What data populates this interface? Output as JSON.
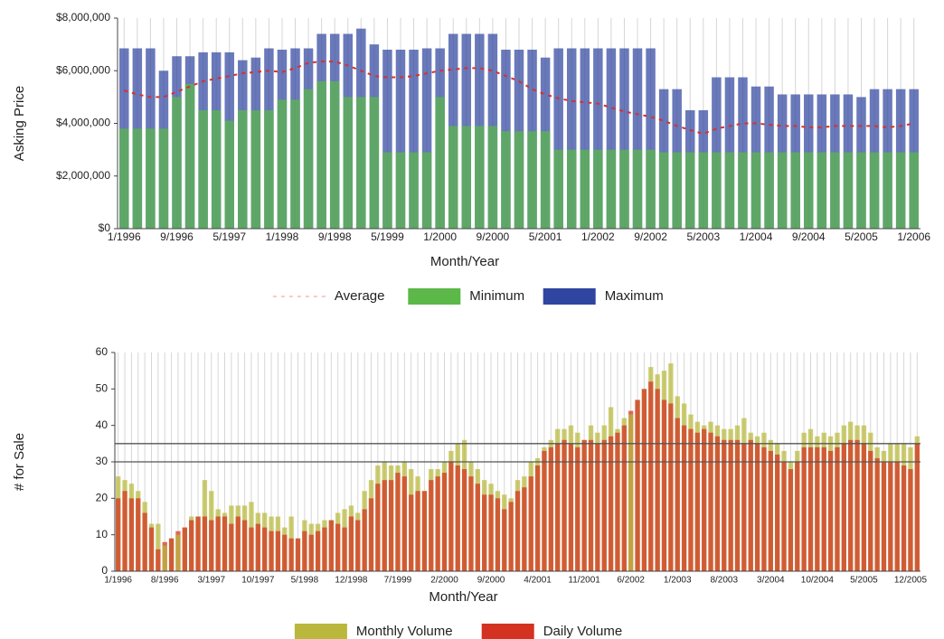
{
  "chart_data": [
    {
      "type": "bar",
      "y_label": "Asking Price",
      "x_label": "Month/Year",
      "categories": [
        "1/1996",
        null,
        null,
        null,
        "9/1996",
        null,
        null,
        null,
        "5/1997",
        null,
        null,
        null,
        "1/1998",
        null,
        null,
        null,
        "9/1998",
        null,
        null,
        null,
        "5/1999",
        null,
        null,
        null,
        "1/2000",
        null,
        null,
        null,
        "9/2000",
        null,
        null,
        null,
        "5/2001",
        null,
        null,
        null,
        "1/2002",
        null,
        null,
        null,
        "9/2002",
        null,
        null,
        null,
        "5/2003",
        null,
        null,
        null,
        "1/2004",
        null,
        null,
        null,
        "9/2004",
        null,
        null,
        null,
        "5/2005",
        null,
        null,
        null,
        "1/2006"
      ],
      "series": [
        {
          "name": "Average",
          "kind": "line",
          "color": "#d9302a",
          "values": [
            5250000,
            5100000,
            5000000,
            5000000,
            5200000,
            5400000,
            5600000,
            5700000,
            5800000,
            5900000,
            5950000,
            6000000,
            5950000,
            6100000,
            6300000,
            6350000,
            6350000,
            6200000,
            6000000,
            5800000,
            5750000,
            5750000,
            5800000,
            5900000,
            6000000,
            6050000,
            6100000,
            6100000,
            6000000,
            5800000,
            5600000,
            5300000,
            5100000,
            4950000,
            4850000,
            4800000,
            4750000,
            4600000,
            4450000,
            4350000,
            4250000,
            4100000,
            3900000,
            3750000,
            3600000,
            3800000,
            3900000,
            4000000,
            4000000,
            3950000,
            3900000,
            3900000,
            3850000,
            3850000,
            3900000,
            3900000,
            3900000,
            3900000,
            3850000,
            3900000,
            4000000
          ]
        },
        {
          "name": "Minimum",
          "kind": "bar",
          "color": "#5cb848",
          "values": [
            3800000,
            3800000,
            3800000,
            3800000,
            5000000,
            5500000,
            4500000,
            4500000,
            4100000,
            4500000,
            4500000,
            4500000,
            4900000,
            4900000,
            5300000,
            5600000,
            5600000,
            5000000,
            5000000,
            5000000,
            2900000,
            2900000,
            2900000,
            2900000,
            5000000,
            3900000,
            3900000,
            3900000,
            3900000,
            3700000,
            3700000,
            3700000,
            3700000,
            3000000,
            3000000,
            3000000,
            3000000,
            3000000,
            3000000,
            3000000,
            3000000,
            2900000,
            2900000,
            2900000,
            2900000,
            2900000,
            2900000,
            2900000,
            2900000,
            2900000,
            2900000,
            2900000,
            2900000,
            2900000,
            2900000,
            2900000,
            2900000,
            2900000,
            2900000,
            2900000,
            2900000
          ]
        },
        {
          "name": "Maximum",
          "kind": "bar",
          "color": "#2f45a0",
          "values": [
            6850000,
            6850000,
            6850000,
            6000000,
            6550000,
            6550000,
            6700000,
            6700000,
            6700000,
            6400000,
            6500000,
            6850000,
            6800000,
            6850000,
            6850000,
            7400000,
            7400000,
            7400000,
            7600000,
            7000000,
            6800000,
            6800000,
            6800000,
            6850000,
            6850000,
            7400000,
            7400000,
            7400000,
            7400000,
            6800000,
            6800000,
            6800000,
            6500000,
            6850000,
            6850000,
            6850000,
            6850000,
            6850000,
            6850000,
            6850000,
            6850000,
            5300000,
            5300000,
            4500000,
            4500000,
            5750000,
            5750000,
            5750000,
            5400000,
            5400000,
            5100000,
            5100000,
            5100000,
            5100000,
            5100000,
            5100000,
            5000000,
            5300000,
            5300000,
            5300000,
            5300000
          ]
        }
      ],
      "ylim": [
        0,
        8000000
      ],
      "yticks": [
        {
          "value": 0,
          "label": "$0"
        },
        {
          "value": 2000000,
          "label": "$2,000,000"
        },
        {
          "value": 4000000,
          "label": "$4,000,000"
        },
        {
          "value": 6000000,
          "label": "$6,000,000"
        },
        {
          "value": 8000000,
          "label": "$8,000,000"
        }
      ],
      "vertical_grid": true
    },
    {
      "type": "bar",
      "y_label": "# for Sale",
      "x_label": "Month/Year",
      "categories": [
        "1/1996",
        null,
        null,
        null,
        null,
        null,
        null,
        "8/1996",
        null,
        null,
        null,
        null,
        null,
        null,
        "3/1997",
        null,
        null,
        null,
        null,
        null,
        null,
        "10/1997",
        null,
        null,
        null,
        null,
        null,
        null,
        "5/1998",
        null,
        null,
        null,
        null,
        null,
        null,
        "12/1998",
        null,
        null,
        null,
        null,
        null,
        null,
        "7/1999",
        null,
        null,
        null,
        null,
        null,
        null,
        "2/2000",
        null,
        null,
        null,
        null,
        null,
        null,
        "9/2000",
        null,
        null,
        null,
        null,
        null,
        null,
        "4/2001",
        null,
        null,
        null,
        null,
        null,
        null,
        "11/2001",
        null,
        null,
        null,
        null,
        null,
        null,
        "6/2002",
        null,
        null,
        null,
        null,
        null,
        null,
        "1/2003",
        null,
        null,
        null,
        null,
        null,
        null,
        "8/2003",
        null,
        null,
        null,
        null,
        null,
        null,
        "3/2004",
        null,
        null,
        null,
        null,
        null,
        null,
        "10/2004",
        null,
        null,
        null,
        null,
        null,
        null,
        "5/2005",
        null,
        null,
        null,
        null,
        null,
        null,
        "12/2005",
        null
      ],
      "series": [
        {
          "name": "Monthly Volume",
          "kind": "bar",
          "color": "#b9b83c",
          "values": [
            26,
            25,
            24,
            22,
            19,
            13,
            13,
            7,
            9,
            10,
            12,
            15,
            15,
            25,
            22,
            17,
            16,
            18,
            18,
            18,
            19,
            16,
            16,
            15,
            15,
            12,
            15,
            9,
            14,
            13,
            13,
            14,
            14,
            16,
            17,
            18,
            16,
            22,
            25,
            29,
            30,
            29,
            29,
            30,
            28,
            26,
            22,
            28,
            28,
            30,
            33,
            35,
            36,
            30,
            28,
            25,
            24,
            22,
            21,
            20,
            25,
            26,
            30,
            31,
            34,
            36,
            39,
            39,
            40,
            38,
            36,
            40,
            38,
            40,
            45,
            39,
            42,
            43,
            47,
            50,
            56,
            54,
            55,
            57,
            48,
            46,
            43,
            41,
            40,
            41,
            40,
            39,
            39,
            40,
            42,
            38,
            37,
            38,
            36,
            35,
            33,
            30,
            33,
            38,
            39,
            37,
            38,
            37,
            38,
            40,
            41,
            40,
            40,
            38,
            34,
            33,
            35,
            35,
            35,
            34,
            37
          ]
        },
        {
          "name": "Daily Volume",
          "kind": "bar",
          "color": "#d2321f",
          "values": [
            20,
            22,
            20,
            20,
            16,
            12,
            6,
            8,
            9,
            11,
            12,
            14,
            15,
            15,
            14,
            15,
            15,
            13,
            15,
            14,
            12,
            13,
            12,
            11,
            11,
            10,
            9,
            9,
            11,
            10,
            11,
            12,
            14,
            13,
            12,
            15,
            14,
            17,
            20,
            24,
            25,
            25,
            27,
            26,
            21,
            22,
            22,
            25,
            26,
            27,
            30,
            29,
            28,
            26,
            24,
            21,
            21,
            20,
            17,
            19,
            22,
            23,
            26,
            29,
            33,
            34,
            35,
            36,
            35,
            34,
            36,
            36,
            35,
            36,
            37,
            38,
            40,
            44,
            47,
            50,
            52,
            50,
            47,
            46,
            42,
            40,
            39,
            38,
            39,
            38,
            37,
            36,
            36,
            36,
            35,
            36,
            35,
            34,
            33,
            32,
            30,
            28,
            30,
            34,
            34,
            34,
            34,
            33,
            34,
            35,
            36,
            36,
            35,
            33,
            31,
            30,
            30,
            30,
            29,
            28,
            35
          ]
        }
      ],
      "ylim": [
        0,
        60
      ],
      "yticks": [
        0,
        10,
        20,
        30,
        40,
        50,
        60
      ],
      "reference_lines": [
        30,
        35
      ],
      "vertical_grid": true
    }
  ]
}
